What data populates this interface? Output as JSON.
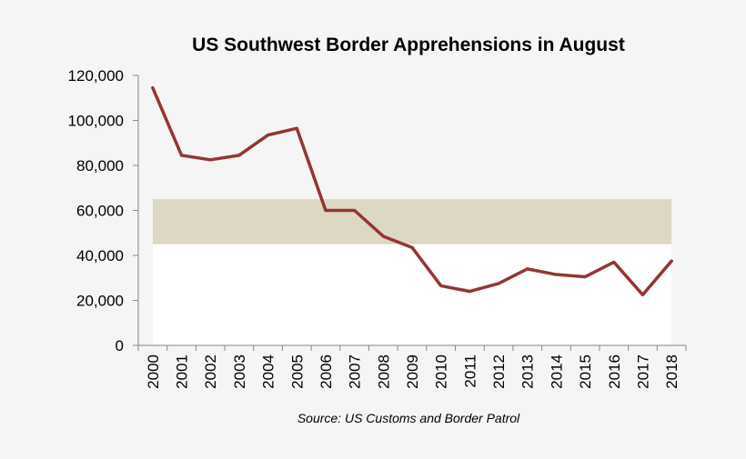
{
  "chart_data": {
    "type": "line",
    "title": "US Southwest Border Apprehensions in August",
    "source": "Source: US Customs and Border Patrol",
    "xlabel": "",
    "ylabel": "",
    "ylim": [
      0,
      120000
    ],
    "y_ticks": [
      {
        "value": 0,
        "label": "0"
      },
      {
        "value": 20000,
        "label": "20,000"
      },
      {
        "value": 40000,
        "label": "40,000"
      },
      {
        "value": 60000,
        "label": "60,000"
      },
      {
        "value": 80000,
        "label": "80,000"
      },
      {
        "value": 100000,
        "label": "100,000"
      },
      {
        "value": 120000,
        "label": "120,000"
      }
    ],
    "categories": [
      "2000",
      "2001",
      "2002",
      "2003",
      "2004",
      "2005",
      "2006",
      "2007",
      "2008",
      "2009",
      "2010",
      "2011",
      "2012",
      "2013",
      "2014",
      "2015",
      "2016",
      "2017",
      "2018"
    ],
    "series": [
      {
        "values": [
          114500,
          84500,
          82500,
          84500,
          93500,
          96500,
          60000,
          60000,
          48500,
          43500,
          26500,
          24000,
          27500,
          34000,
          31500,
          30500,
          37000,
          22500,
          37500
        ],
        "color": "#943634"
      }
    ],
    "band": {
      "from": 45000,
      "to": 65000,
      "color": "#ddd8c4"
    },
    "plot_background": "#ffffff",
    "grid": false,
    "legend": "none"
  }
}
